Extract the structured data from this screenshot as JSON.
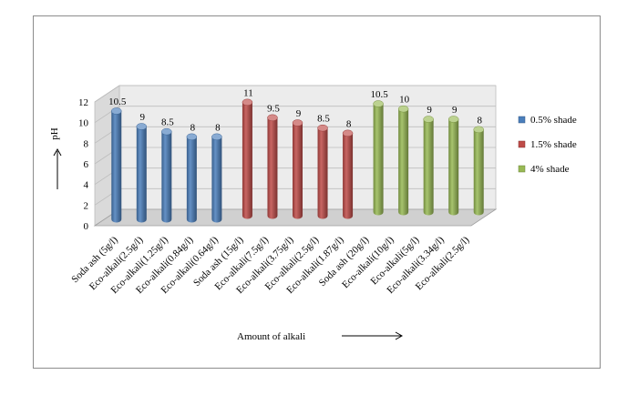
{
  "chart_data": {
    "type": "bar",
    "variant": "3d-cylinder",
    "ylabel": "pH",
    "xlabel": "Amount of alkali",
    "yticks": [
      0,
      2,
      4,
      6,
      8,
      10,
      12
    ],
    "ylim": [
      0,
      12
    ],
    "grid": true,
    "legend_position": "right",
    "series": [
      {
        "name": "0.5% shade",
        "color": "#4a7ebb",
        "categories": [
          "Soda ash (5g/l)",
          "Eco-alkali(2.5g/l)",
          "Eco-alkali(1.25g/l)",
          "Eco-alkali(0.84g/l)",
          "Eco-alkali(0.64g/l)"
        ],
        "values": [
          10.5,
          9,
          8.5,
          8,
          8
        ],
        "labels": [
          "10.5",
          "9",
          "8.5",
          "8",
          "8"
        ]
      },
      {
        "name": "1.5% shade",
        "color": "#be4b48",
        "categories": [
          "Soda ash (15g/l)",
          "Eco-alkali(7.5g/l)",
          "Eco-alkali(3.75g/l)",
          "Eco-alkali(2.5g/l)",
          "Eco-alkali(1.87g/l)"
        ],
        "values": [
          11,
          9.5,
          9,
          8.5,
          8
        ],
        "labels": [
          "11",
          "9.5",
          "9",
          "8.5",
          "8"
        ]
      },
      {
        "name": "4% shade",
        "color": "#98b954",
        "categories": [
          "Soda ash (20g/l)",
          "Eco-alkali(10g/l)",
          "Eco-alkali(5g/l)",
          "Eco-alkali(3.34g/l)",
          "Eco-alkali(2.5g/l)"
        ],
        "values": [
          10.5,
          10,
          9,
          9,
          8
        ],
        "labels": [
          "10.5",
          "10",
          "9",
          "9",
          "8"
        ]
      }
    ]
  }
}
